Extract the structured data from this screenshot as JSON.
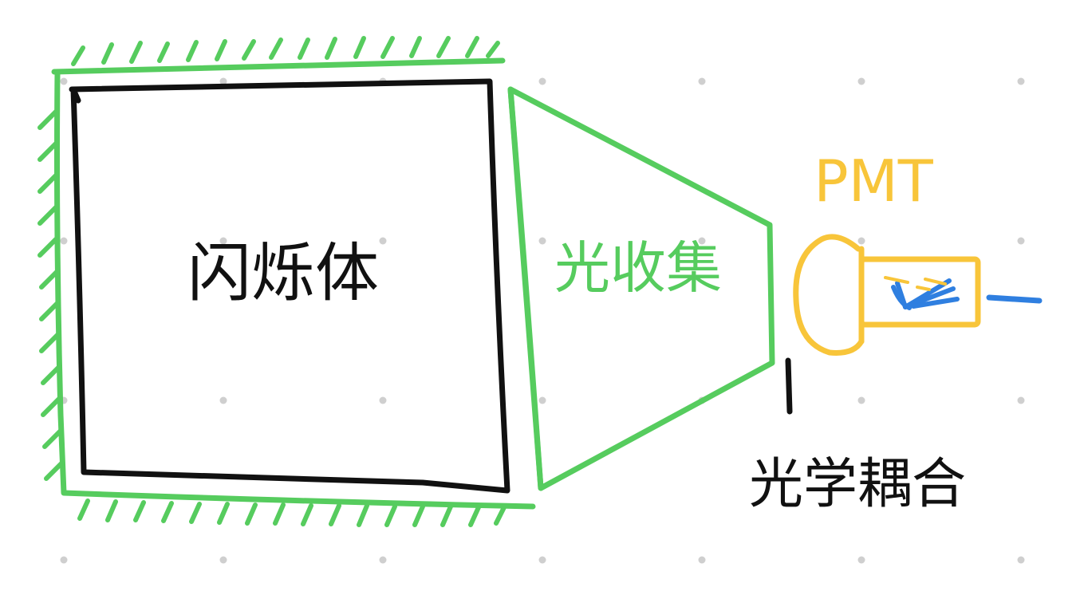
{
  "labels": {
    "scintillator": "闪烁体",
    "light_collection": "光收集",
    "pmt": "PMT",
    "optical_coupling": "光学耦合"
  },
  "colors": {
    "background": "#ffffff",
    "grid_dot": "#cfcfcf",
    "scintillator_stroke": "#111111",
    "reflector_green": "#56cc5e",
    "pmt_yellow": "#f8c53a",
    "photon_blue": "#2f7fe0",
    "coupling_black": "#111111"
  }
}
